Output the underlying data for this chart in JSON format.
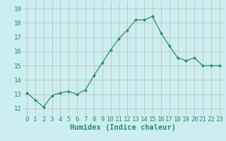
{
  "x": [
    0,
    1,
    2,
    3,
    4,
    5,
    6,
    7,
    8,
    9,
    10,
    11,
    12,
    13,
    14,
    15,
    16,
    17,
    18,
    19,
    20,
    21,
    22,
    23
  ],
  "y": [
    13.1,
    12.6,
    12.1,
    12.9,
    13.1,
    13.2,
    13.0,
    13.3,
    14.3,
    15.2,
    16.1,
    16.9,
    17.5,
    18.2,
    18.2,
    18.45,
    17.3,
    16.4,
    15.55,
    15.35,
    15.55,
    15.0,
    15.0,
    15.0
  ],
  "line_color": "#2e8b72",
  "marker": "D",
  "marker_size": 2.0,
  "bg_color": "#cceef0",
  "grid_color": "#c0b8c0",
  "xlabel": "Humidex (Indice chaleur)",
  "xlim": [
    -0.5,
    23.5
  ],
  "ylim": [
    11.5,
    19.5
  ],
  "yticks": [
    12,
    13,
    14,
    15,
    16,
    17,
    18,
    19
  ],
  "xticks": [
    0,
    1,
    2,
    3,
    4,
    5,
    6,
    7,
    8,
    9,
    10,
    11,
    12,
    13,
    14,
    15,
    16,
    17,
    18,
    19,
    20,
    21,
    22,
    23
  ],
  "xlabel_fontsize": 7.5,
  "tick_fontsize": 6.5,
  "line_width": 0.9
}
